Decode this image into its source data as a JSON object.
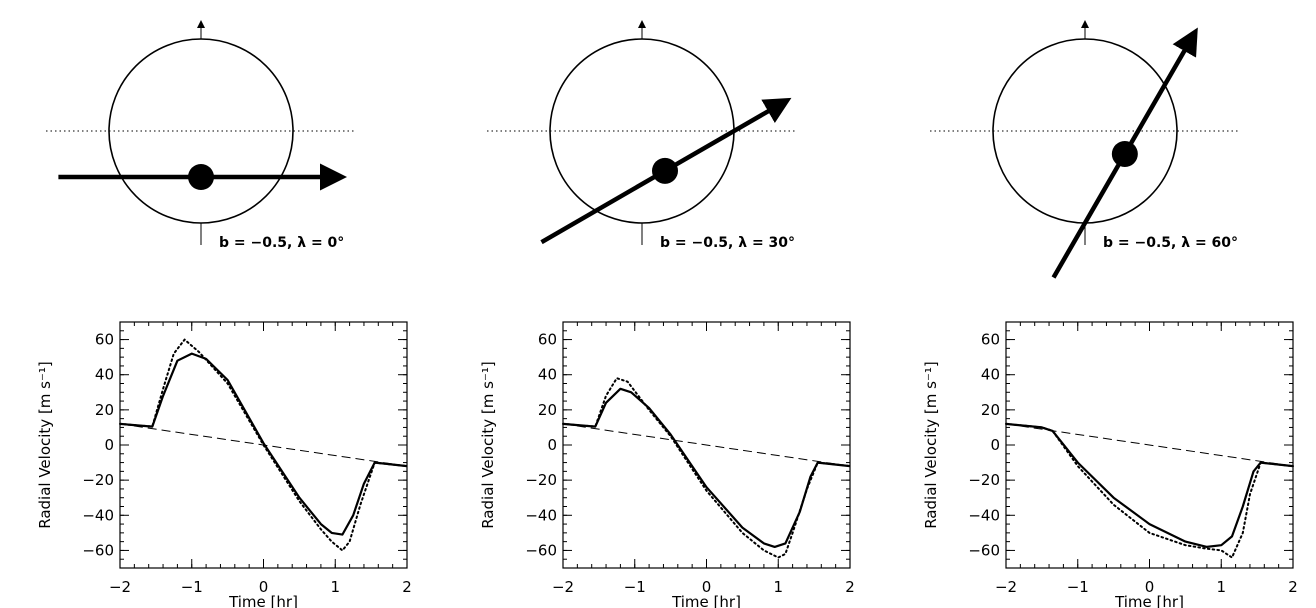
{
  "chart_data": [
    {
      "type": "line",
      "caption": "b = −0.5, λ = 0°",
      "b": -0.5,
      "lambda_deg": 0,
      "xlabel": "Time [hr]",
      "ylabel": "Radial Velocity [m s⁻¹]",
      "xlim": [
        -2,
        2
      ],
      "ylim": [
        -70,
        70
      ],
      "xticks": [
        -2,
        -1,
        0,
        1,
        2
      ],
      "yticks": [
        -60,
        -40,
        -20,
        0,
        20,
        40,
        60
      ],
      "series": [
        {
          "style": "solid",
          "x": [
            -2,
            -1.55,
            -1.4,
            -1.2,
            -1.0,
            -0.8,
            -0.5,
            0.0,
            0.5,
            0.8,
            0.95,
            1.1,
            1.25,
            1.4,
            1.55,
            2
          ],
          "y": [
            12,
            10.5,
            28,
            48,
            52,
            49,
            37,
            1,
            -30,
            -45,
            -50,
            -51,
            -40,
            -22,
            -10,
            -12
          ]
        },
        {
          "style": "dotted",
          "x": [
            -2,
            -1.55,
            -1.4,
            -1.25,
            -1.1,
            -0.9,
            -0.5,
            0.0,
            0.5,
            0.8,
            0.95,
            1.1,
            1.2,
            1.35,
            1.55,
            2
          ],
          "y": [
            12,
            10.5,
            32,
            52,
            60,
            53,
            35,
            0,
            -32,
            -48,
            -55,
            -60,
            -55,
            -34,
            -10,
            -12
          ]
        },
        {
          "style": "dashed",
          "x": [
            -2,
            2
          ],
          "y": [
            12,
            -12
          ]
        }
      ]
    },
    {
      "type": "line",
      "caption": "b = −0.5, λ = 30°",
      "b": -0.5,
      "lambda_deg": 30,
      "xlabel": "Time [hr]",
      "ylabel": "Radial Velocity [m s⁻¹]",
      "xlim": [
        -2,
        2
      ],
      "ylim": [
        -70,
        70
      ],
      "xticks": [
        -2,
        -1,
        0,
        1,
        2
      ],
      "yticks": [
        -60,
        -40,
        -20,
        0,
        20,
        40,
        60
      ],
      "series": [
        {
          "style": "solid",
          "x": [
            -2,
            -1.55,
            -1.4,
            -1.2,
            -1.05,
            -0.8,
            -0.5,
            0.0,
            0.5,
            0.8,
            0.95,
            1.1,
            1.3,
            1.45,
            1.55,
            2
          ],
          "y": [
            12,
            10.5,
            24,
            32,
            30,
            21,
            6,
            -24,
            -47,
            -56,
            -58,
            -56,
            -38,
            -18,
            -10,
            -12
          ]
        },
        {
          "style": "dotted",
          "x": [
            -2,
            -1.55,
            -1.4,
            -1.25,
            -1.1,
            -0.8,
            -0.5,
            0.0,
            0.5,
            0.8,
            1.0,
            1.1,
            1.2,
            1.4,
            1.55,
            2
          ],
          "y": [
            12,
            10.5,
            28,
            38,
            36,
            20,
            5,
            -26,
            -50,
            -60,
            -64,
            -62,
            -50,
            -25,
            -10,
            -12
          ]
        },
        {
          "style": "dashed",
          "x": [
            -2,
            2
          ],
          "y": [
            12,
            -12
          ]
        }
      ]
    },
    {
      "type": "line",
      "caption": "b = −0.5, λ = 60°",
      "b": -0.5,
      "lambda_deg": 60,
      "xlabel": "Time [hr]",
      "ylabel": "Radial Velocity [m s⁻¹]",
      "xlim": [
        -2,
        2
      ],
      "ylim": [
        -70,
        70
      ],
      "xticks": [
        -2,
        -1,
        0,
        1,
        2
      ],
      "yticks": [
        -60,
        -40,
        -20,
        0,
        20,
        40,
        60
      ],
      "series": [
        {
          "style": "solid",
          "x": [
            -2,
            -1.5,
            -1.35,
            -1.0,
            -0.5,
            0.0,
            0.5,
            0.8,
            1.0,
            1.15,
            1.3,
            1.45,
            1.55,
            2
          ],
          "y": [
            12,
            10,
            8,
            -10,
            -30,
            -45,
            -55,
            -58,
            -57,
            -52,
            -35,
            -15,
            -10,
            -12
          ]
        },
        {
          "style": "dotted",
          "x": [
            -2,
            -1.5,
            -1.35,
            -1.0,
            -0.5,
            0.0,
            0.5,
            0.8,
            1.0,
            1.15,
            1.3,
            1.4,
            1.55,
            2
          ],
          "y": [
            12,
            10,
            8,
            -12,
            -34,
            -50,
            -57,
            -59,
            -60,
            -64,
            -50,
            -28,
            -10,
            -12
          ]
        },
        {
          "style": "dashed",
          "x": [
            -2,
            2
          ],
          "y": [
            12,
            -12
          ]
        }
      ]
    }
  ]
}
